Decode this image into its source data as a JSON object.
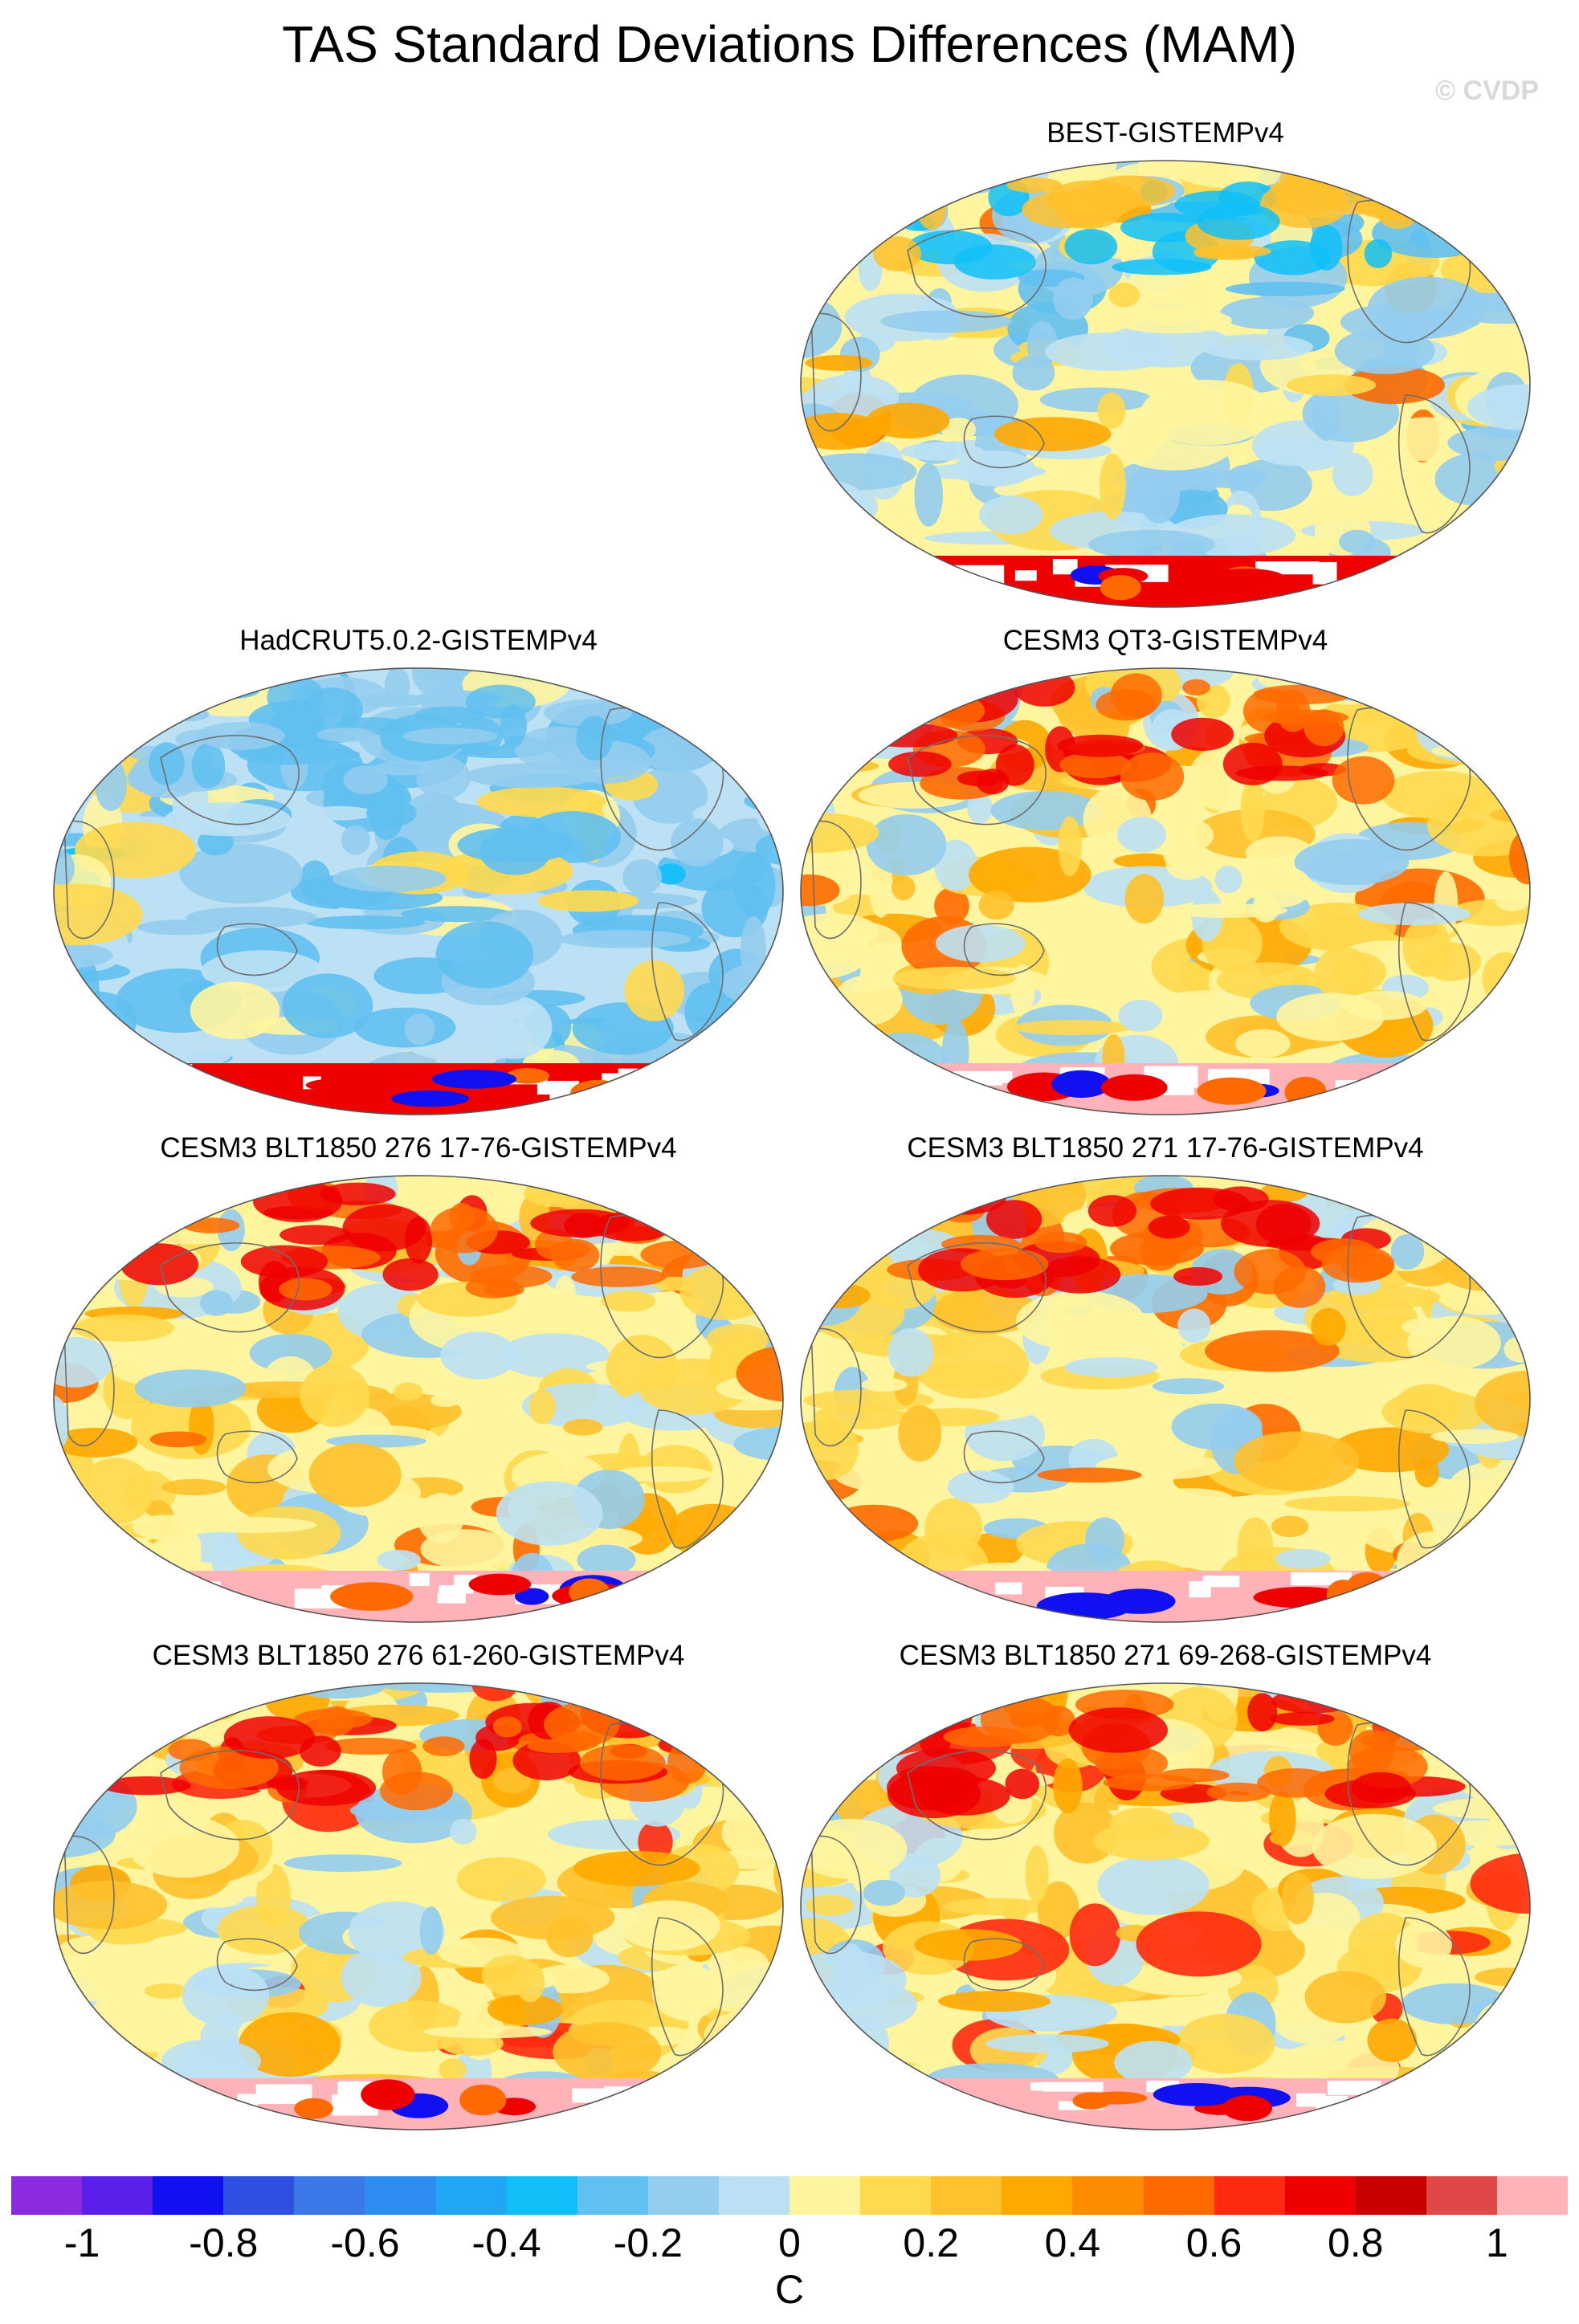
{
  "title": "TAS Standard Deviations Differences (MAM)",
  "watermark": "© CVDP",
  "panels": [
    {
      "title": "BEST-GISTEMPv4",
      "style": "mixed"
    },
    {
      "title": "HadCRUT5.0.2-GISTEMPv4",
      "style": "cool"
    },
    {
      "title": "CESM3 QT3-GISTEMPv4",
      "style": "warm"
    },
    {
      "title": "CESM3 BLT1850 276 17-76-GISTEMPv4",
      "style": "warm"
    },
    {
      "title": "CESM3 BLT1850 271 17-76-GISTEMPv4",
      "style": "warm"
    },
    {
      "title": "CESM3 BLT1850 276 61-260-GISTEMPv4",
      "style": "hot"
    },
    {
      "title": "CESM3 BLT1850 271 69-268-GISTEMPv4",
      "style": "hot"
    }
  ],
  "colorbar": {
    "colors": [
      "#8a2be2",
      "#5a1fe8",
      "#1010f0",
      "#2f4fe0",
      "#3a78e8",
      "#2e8ef0",
      "#1fa6f5",
      "#10bff8",
      "#60c0f0",
      "#94cdee",
      "#bde1f4",
      "#fff59e",
      "#ffd94e",
      "#ffc12c",
      "#ffa800",
      "#ff8c00",
      "#ff6a00",
      "#ff2a10",
      "#ee0000",
      "#c80000",
      "#e04848",
      "#ffb3b8"
    ],
    "labels": [
      "-1",
      "-0.8",
      "-0.6",
      "-0.4",
      "-0.2",
      "0",
      "0.2",
      "0.4",
      "0.6",
      "0.8",
      "1"
    ],
    "units": "C"
  }
}
